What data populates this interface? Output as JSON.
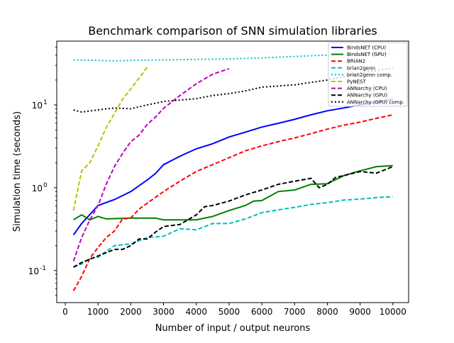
{
  "chart_data": {
    "type": "line",
    "title": "Benchmark comparison of SNN simulation libraries",
    "xlabel": "Number of input / output neurons",
    "ylabel": "Simulation time (seconds)",
    "xlim": [
      -260,
      10480
    ],
    "ylim": [
      0.041,
      59
    ],
    "yscale": "log",
    "xticks": [
      0,
      1000,
      2000,
      3000,
      4000,
      5000,
      6000,
      7000,
      8000,
      9000,
      10000
    ],
    "yticks": [
      {
        "value": 0.1,
        "label": "10^-1"
      },
      {
        "value": 1,
        "label": "10^0"
      },
      {
        "value": 10,
        "label": "10^1"
      }
    ],
    "grid": false,
    "legend_position": "top-right",
    "series": [
      {
        "name": "BindsNET (CPU)",
        "color": "#0000ff",
        "style": "solid",
        "x": [
          250,
          500,
          1000,
          1500,
          2000,
          2500,
          2750,
          3000,
          3500,
          4000,
          4500,
          5000,
          5500,
          6000,
          6500,
          7000,
          7500,
          8000,
          8500,
          9000,
          9500,
          10000
        ],
        "y": [
          0.27,
          0.37,
          0.61,
          0.72,
          0.9,
          1.24,
          1.48,
          1.9,
          2.4,
          2.95,
          3.4,
          4.1,
          4.7,
          5.4,
          6.0,
          6.7,
          7.6,
          8.5,
          9.2,
          10,
          10.8,
          11.7
        ]
      },
      {
        "name": "BindsNET (GPU)",
        "color": "#008000",
        "style": "solid",
        "x": [
          250,
          500,
          750,
          1000,
          1250,
          2000,
          2750,
          3000,
          4000,
          4500,
          5000,
          5500,
          5750,
          6000,
          6500,
          7000,
          7500,
          8000,
          8500,
          9000,
          9500,
          10000
        ],
        "y": [
          0.41,
          0.47,
          0.41,
          0.45,
          0.42,
          0.43,
          0.43,
          0.41,
          0.41,
          0.45,
          0.53,
          0.61,
          0.69,
          0.7,
          0.9,
          0.94,
          1.1,
          1.12,
          1.4,
          1.6,
          1.8,
          1.85
        ]
      },
      {
        "name": "BRIAN2",
        "color": "#ff0000",
        "style": "dashed",
        "x": [
          250,
          500,
          750,
          1000,
          1250,
          1500,
          1750,
          2000,
          2250,
          2500,
          3000,
          3500,
          4000,
          4500,
          5000,
          5500,
          6000,
          6500,
          7000,
          7500,
          8000,
          8500,
          9000,
          9500,
          10000
        ],
        "y": [
          0.057,
          0.085,
          0.14,
          0.19,
          0.25,
          0.3,
          0.42,
          0.43,
          0.55,
          0.65,
          0.9,
          1.2,
          1.57,
          1.9,
          2.3,
          2.8,
          3.2,
          3.6,
          4.0,
          4.5,
          5.1,
          5.7,
          6.2,
          6.9,
          7.6
        ]
      },
      {
        "name": "brian2genn",
        "color": "#00bfbf",
        "style": "dashed",
        "x": [
          250,
          500,
          750,
          1000,
          1250,
          1500,
          2000,
          2500,
          3000,
          3500,
          4000,
          4500,
          5000,
          5500,
          6000,
          6500,
          7000,
          7500,
          8000,
          8500,
          9000,
          9500,
          10000
        ],
        "y": [
          0.11,
          0.12,
          0.14,
          0.145,
          0.17,
          0.2,
          0.21,
          0.25,
          0.26,
          0.32,
          0.31,
          0.37,
          0.37,
          0.42,
          0.5,
          0.54,
          0.58,
          0.63,
          0.66,
          0.71,
          0.73,
          0.76,
          0.78
        ]
      },
      {
        "name": "brian2genn comp.",
        "color": "#00bfbf",
        "style": "dotted",
        "x": [
          250,
          1000,
          1500,
          2000,
          3000,
          4000,
          5000,
          6000,
          7000,
          8000,
          9000,
          10000
        ],
        "y": [
          35,
          34.5,
          34,
          34.5,
          35,
          35.5,
          36,
          37,
          38.5,
          40,
          41,
          42
        ]
      },
      {
        "name": "PyNEST",
        "color": "#bfbf00",
        "style": "dashed",
        "x": [
          250,
          500,
          750,
          1000,
          1250,
          1500,
          1750,
          2000,
          2250,
          2500
        ],
        "y": [
          0.53,
          1.6,
          2.0,
          3.2,
          5.3,
          7.9,
          11.7,
          15.7,
          21,
          28.5
        ]
      },
      {
        "name": "ANNarchy (CPU)",
        "color": "#bf00bf",
        "style": "dashed",
        "x": [
          250,
          500,
          750,
          1000,
          1250,
          1500,
          1750,
          2000,
          2250,
          2500,
          2750,
          3000,
          3500,
          4000,
          4500,
          5000
        ],
        "y": [
          0.13,
          0.25,
          0.41,
          0.61,
          1.1,
          1.8,
          2.6,
          3.6,
          4.3,
          5.8,
          7.1,
          9.1,
          13,
          18,
          23.5,
          27.4
        ]
      },
      {
        "name": "ANNarchy (GPU)",
        "color": "#000000",
        "style": "dashed",
        "x": [
          250,
          500,
          1000,
          1500,
          1750,
          2000,
          2250,
          2500,
          2750,
          3000,
          3500,
          4000,
          4250,
          4500,
          5000,
          5500,
          6000,
          6500,
          7000,
          7500,
          7750,
          8000,
          8250,
          8500,
          9000,
          9500,
          10000
        ],
        "y": [
          0.11,
          0.125,
          0.15,
          0.18,
          0.18,
          0.2,
          0.24,
          0.24,
          0.29,
          0.34,
          0.36,
          0.47,
          0.59,
          0.61,
          0.69,
          0.82,
          0.94,
          1.1,
          1.2,
          1.3,
          1.0,
          1.1,
          1.33,
          1.4,
          1.57,
          1.5,
          1.8
        ]
      },
      {
        "name": "ANNarchy (GPU) comp.",
        "color": "#000000",
        "style": "dotted",
        "x": [
          250,
          500,
          1000,
          1500,
          2000,
          2500,
          3000,
          4000,
          4500,
          5000,
          5500,
          6000,
          7000,
          8000,
          8500,
          9000,
          9500,
          10000
        ],
        "y": [
          8.7,
          8.2,
          8.7,
          9.2,
          9.0,
          10,
          11,
          11.9,
          13,
          13.7,
          14.8,
          16.4,
          17.5,
          20,
          22,
          24.5,
          26,
          28
        ]
      }
    ]
  }
}
